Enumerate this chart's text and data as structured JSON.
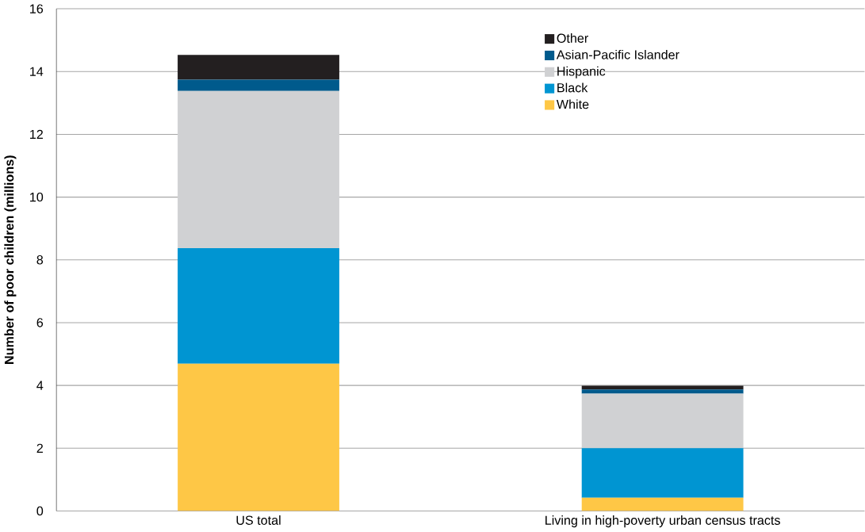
{
  "chart_data": {
    "type": "bar",
    "stacked": true,
    "ylabel": "Number of poor children (millions)",
    "categories": [
      "US total",
      "Living in high-poverty urban census tracts"
    ],
    "series": [
      {
        "name": "White",
        "color": "#fec746",
        "values": [
          4.69,
          0.42
        ]
      },
      {
        "name": "Black",
        "color": "#0095d2",
        "values": [
          3.68,
          1.58
        ]
      },
      {
        "name": "Hispanic",
        "color": "#d0d1d3",
        "values": [
          5.01,
          1.74
        ]
      },
      {
        "name": "Asian-Pacific Islander",
        "color": "#005a8c",
        "values": [
          0.36,
          0.13
        ]
      },
      {
        "name": "Other",
        "color": "#231f20",
        "values": [
          0.79,
          0.12
        ]
      }
    ],
    "ylim": [
      0,
      16
    ],
    "yticks": [
      0,
      2,
      4,
      6,
      8,
      10,
      12,
      14,
      16
    ],
    "grid": "y",
    "legend": "top right"
  }
}
